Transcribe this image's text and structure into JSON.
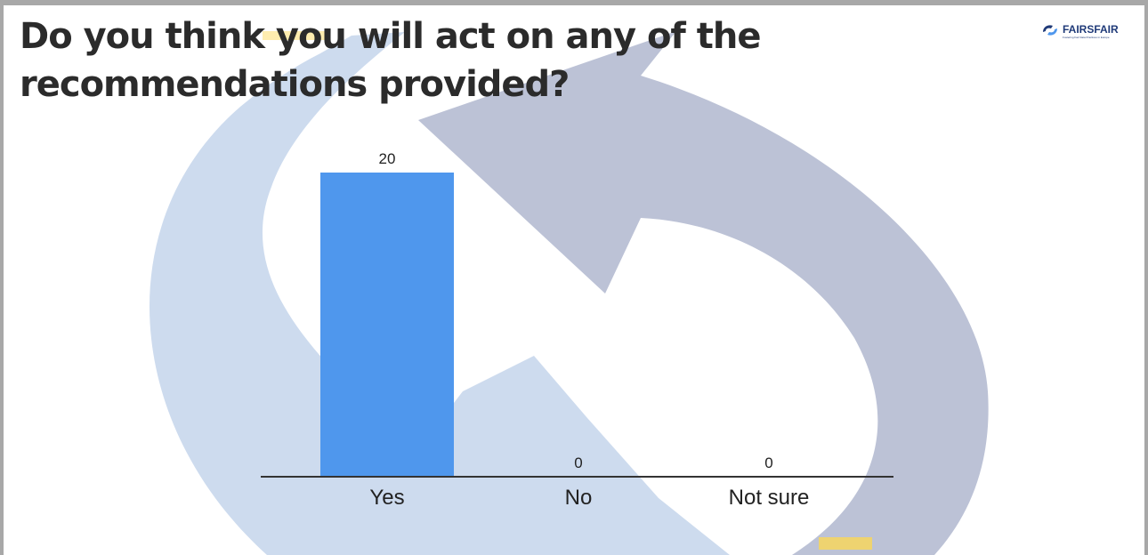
{
  "slide": {
    "title": "Do you think you will act on any of the recommendations provided?"
  },
  "logo": {
    "name": "FAIRSFAIR",
    "tagline": "Fostering Fair Data Practices in Europe"
  },
  "chart_data": {
    "type": "bar",
    "title": "",
    "xlabel": "",
    "ylabel": "",
    "categories": [
      "Yes",
      "No",
      "Not sure"
    ],
    "values": [
      20,
      0,
      0
    ],
    "ylim": [
      0,
      20
    ],
    "grid": false,
    "legend": "none",
    "bar_color": "#4f97ed",
    "axis_color": "#333333"
  },
  "colors": {
    "title": "#2b2b2b",
    "arrow_light": "#cddbee",
    "arrow_dark": "#bcc2d6",
    "accent_yellow": "#ffd84d",
    "logo": "#1f3a78"
  }
}
